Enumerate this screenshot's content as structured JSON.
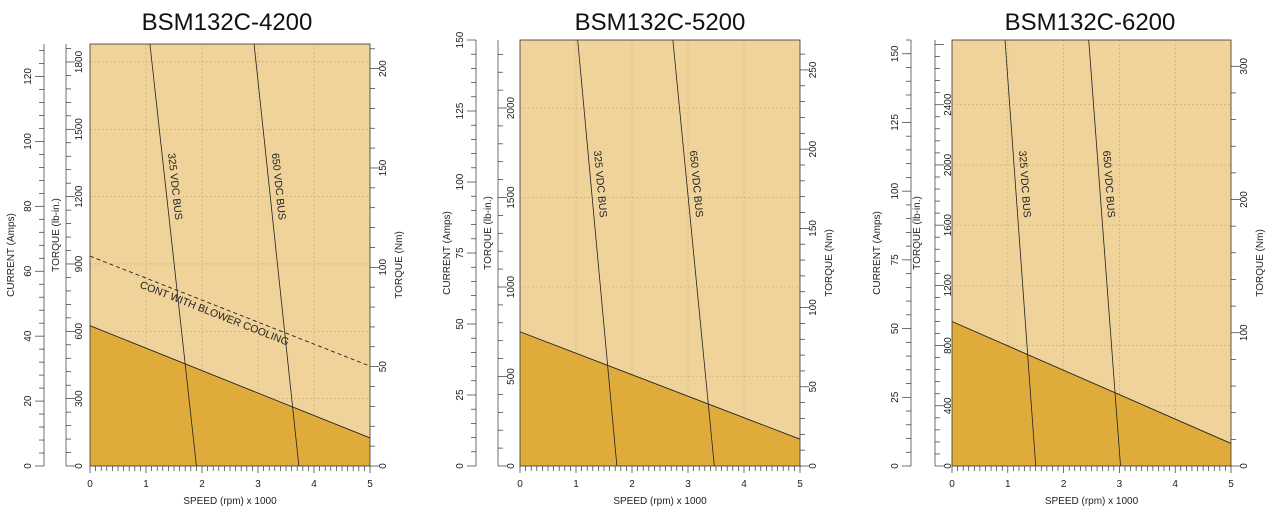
{
  "colors": {
    "intermittent_zone": "#EFD39A",
    "continuous_zone": "#DFAC3B",
    "grid": "#C9A868",
    "line": "#222222"
  },
  "chart_data": [
    {
      "type": "area",
      "title": "BSM132C-4200",
      "xlabel": "SPEED (rpm) x 1000",
      "ylabel_current": "CURRENT (Amps)",
      "ylabel_torque_lbin": "TORQUE (lb-in.)",
      "ylabel_torque_nm": "TORQUE (Nm)",
      "xlim": [
        0,
        5
      ],
      "ylim_lbin": [
        0,
        1880
      ],
      "current_max": 130,
      "nm_max": 212.4,
      "current_ticks": [
        0,
        20,
        40,
        60,
        80,
        100,
        120
      ],
      "lbin_ticks": [
        0,
        300,
        600,
        900,
        1200,
        1500,
        1800
      ],
      "nm_ticks": [
        0,
        50,
        100,
        150,
        200
      ],
      "x_ticks": [
        0,
        1,
        2,
        3,
        4,
        5
      ],
      "continuous_line": [
        [
          0,
          625
        ],
        [
          5,
          125
        ]
      ],
      "blower_line": [
        [
          0,
          935
        ],
        [
          5,
          445
        ]
      ],
      "blower_label": "CONT WITH BLOWER COOLING",
      "bus_lines": [
        {
          "label": "325 VDC BUS",
          "points": [
            [
              1.07,
              1880
            ],
            [
              1.9,
              0
            ]
          ]
        },
        {
          "label": "650 VDC BUS",
          "points": [
            [
              2.93,
              1880
            ],
            [
              3.73,
              0
            ]
          ]
        }
      ]
    },
    {
      "type": "area",
      "title": "BSM132C-5200",
      "xlabel": "SPEED (rpm) x 1000",
      "ylabel_current": "CURRENT (Amps)",
      "ylabel_torque_lbin": "TORQUE (lb-in.)",
      "ylabel_torque_nm": "TORQUE (Nm)",
      "xlim": [
        0,
        5
      ],
      "ylim_lbin": [
        0,
        2380
      ],
      "current_max": 150,
      "nm_max": 268.9,
      "current_ticks": [
        0,
        25,
        50,
        75,
        100,
        125,
        150
      ],
      "lbin_ticks": [
        0,
        500,
        1000,
        1500,
        2000
      ],
      "nm_ticks": [
        0,
        50,
        100,
        150,
        200,
        250
      ],
      "x_ticks": [
        0,
        1,
        2,
        3,
        4,
        5
      ],
      "continuous_line": [
        [
          0,
          750
        ],
        [
          5,
          150
        ]
      ],
      "bus_lines": [
        {
          "label": "325 VDC BUS",
          "points": [
            [
              1.03,
              2380
            ],
            [
              1.73,
              0
            ]
          ]
        },
        {
          "label": "650 VDC BUS",
          "points": [
            [
              2.73,
              2380
            ],
            [
              3.47,
              0
            ]
          ]
        }
      ]
    },
    {
      "type": "area",
      "title": "BSM132C-6200",
      "xlabel": "SPEED (rpm) x 1000",
      "ylabel_current": "CURRENT (Amps)",
      "ylabel_torque_lbin": "TORQUE (lb-in.)",
      "ylabel_torque_nm": "TORQUE (Nm)",
      "xlim": [
        0,
        5
      ],
      "ylim_lbin": [
        0,
        2830
      ],
      "current_max": 155,
      "nm_max": 319.7,
      "current_ticks": [
        0,
        25,
        50,
        75,
        100,
        125,
        150
      ],
      "lbin_ticks": [
        0,
        400,
        800,
        1200,
        1600,
        2000,
        2400
      ],
      "nm_ticks": [
        0,
        100,
        200,
        300
      ],
      "x_ticks": [
        0,
        1,
        2,
        3,
        4,
        5
      ],
      "continuous_line": [
        [
          0,
          960
        ],
        [
          5,
          150
        ]
      ],
      "bus_lines": [
        {
          "label": "325 VDC BUS",
          "points": [
            [
              0.95,
              2830
            ],
            [
              1.5,
              0
            ]
          ]
        },
        {
          "label": "650 VDC BUS",
          "points": [
            [
              2.45,
              2830
            ],
            [
              3.02,
              0
            ]
          ]
        }
      ]
    }
  ]
}
